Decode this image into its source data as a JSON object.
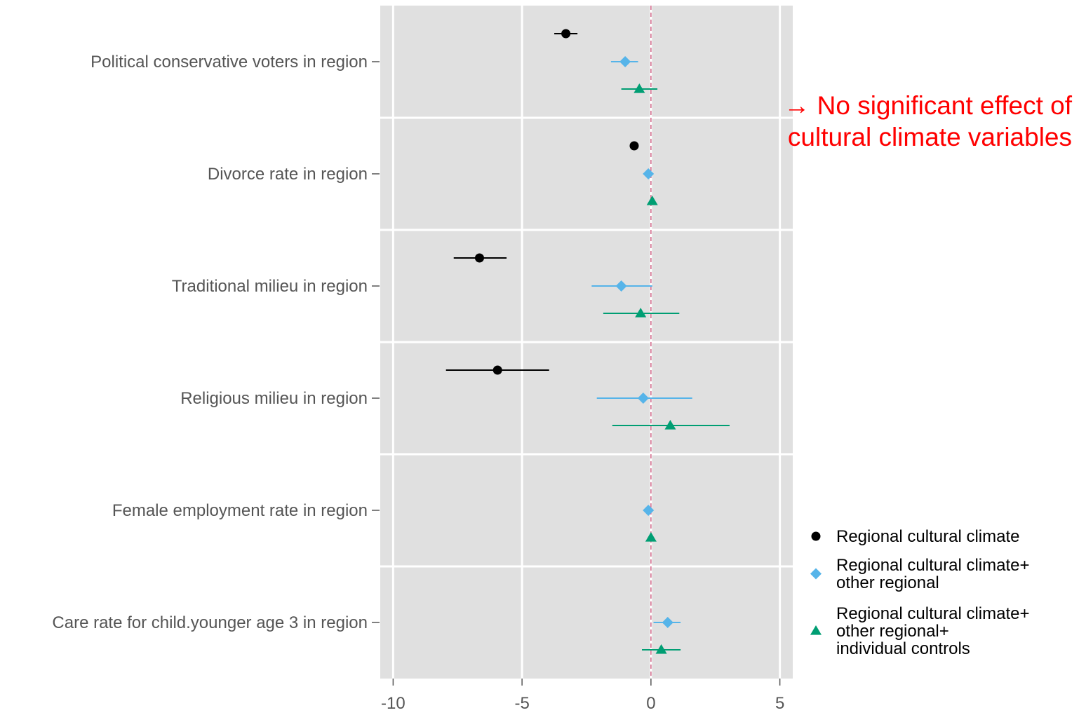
{
  "chart_data": {
    "type": "scatter",
    "subtype": "coefficient-plot",
    "title": "",
    "xlabel": "",
    "ylabel": "",
    "xlim": [
      -10.5,
      5.5
    ],
    "x_ticks": [
      -10,
      -5,
      0,
      5
    ],
    "x_tick_labels": [
      "-10",
      "-5",
      "0",
      "5"
    ],
    "reference_line": {
      "x": 0,
      "color": "#d4708f",
      "style": "dashed"
    },
    "panel_background": "#e0e0e0",
    "grid": true,
    "legend_position": "bottom-right",
    "categories": [
      "Political conservative voters in region",
      "Divorce rate in region",
      "Traditional milieu in region",
      "Religious milieu in region",
      "Female employment rate in region",
      "Care rate for child.younger age 3 in region"
    ],
    "series": [
      {
        "name": "Regional cultural climate",
        "marker": "circle",
        "color": "#000000",
        "estimates": [
          -3.3,
          -0.65,
          -6.65,
          -5.95,
          null,
          null
        ],
        "ci_low": [
          -3.75,
          -0.65,
          -7.65,
          -7.95,
          null,
          null
        ],
        "ci_high": [
          -2.85,
          -0.65,
          -5.6,
          -3.95,
          null,
          null
        ]
      },
      {
        "name": "Regional cultural climate+ other regional",
        "marker": "diamond",
        "color": "#56b4e9",
        "estimates": [
          -1.0,
          -0.1,
          -1.15,
          -0.3,
          -0.1,
          0.65
        ],
        "ci_low": [
          -1.55,
          -0.1,
          -2.3,
          -2.1,
          -0.1,
          0.1
        ],
        "ci_high": [
          -0.5,
          -0.1,
          0.05,
          1.6,
          -0.1,
          1.15
        ]
      },
      {
        "name": "Regional cultural climate+ other regional+ individual controls",
        "marker": "triangle",
        "color": "#009e73",
        "estimates": [
          -0.45,
          0.05,
          -0.4,
          0.75,
          0.0,
          0.4
        ],
        "ci_low": [
          -1.15,
          0.05,
          -1.85,
          -1.5,
          0.0,
          -0.35
        ],
        "ci_high": [
          0.25,
          0.05,
          1.1,
          3.05,
          0.0,
          1.15
        ]
      }
    ],
    "legend_lines": [
      [
        "Regional cultural climate"
      ],
      [
        "Regional cultural climate+",
        "other regional"
      ],
      [
        "Regional cultural climate+",
        "other regional+",
        "individual controls"
      ]
    ],
    "annotation": {
      "lines": [
        "→ No significant effect of",
        "cultural climate variables"
      ],
      "color": "#ff0000"
    }
  }
}
